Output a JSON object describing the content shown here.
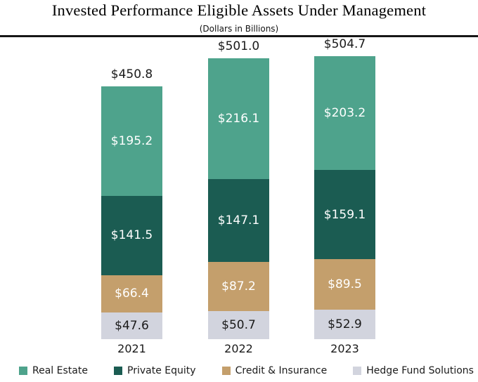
{
  "header": {
    "title": "Invested Performance Eligible Assets Under Management",
    "subtitle": "(Dollars in Billions)"
  },
  "chart_data": {
    "type": "bar",
    "variant": "stacked-vertical",
    "title": "Invested Performance Eligible Assets Under Management",
    "subtitle": "(Dollars in Billions)",
    "unit": "USD billions",
    "categories": [
      "2021",
      "2022",
      "2023"
    ],
    "totals": [
      450.8,
      501.0,
      504.7
    ],
    "total_labels": [
      "$450.8",
      "$501.0",
      "$504.7"
    ],
    "stack_order": "bottom-to-top",
    "series": [
      {
        "name": "Hedge Fund Solutions",
        "color": "#D2D4DE",
        "label_color": "#1A1A1A",
        "values": [
          47.6,
          50.7,
          52.9
        ],
        "value_labels": [
          "$47.6",
          "$50.7",
          "$52.9"
        ]
      },
      {
        "name": "Credit & Insurance",
        "color": "#C49F6C",
        "label_color": "#FFFFFF",
        "values": [
          66.4,
          87.2,
          89.5
        ],
        "value_labels": [
          "$66.4",
          "$87.2",
          "$89.5"
        ]
      },
      {
        "name": "Private Equity",
        "color": "#1B5C52",
        "label_color": "#FFFFFF",
        "values": [
          141.5,
          147.1,
          159.1
        ],
        "value_labels": [
          "$141.5",
          "$147.1",
          "$159.1"
        ]
      },
      {
        "name": "Real Estate",
        "color": "#4EA38C",
        "label_color": "#FFFFFF",
        "values": [
          195.2,
          216.1,
          203.2
        ],
        "value_labels": [
          "$195.2",
          "$216.1",
          "$203.2"
        ]
      }
    ],
    "legend": [
      {
        "label": "Real Estate",
        "color": "#4EA38C"
      },
      {
        "label": "Private Equity",
        "color": "#1B5C52"
      },
      {
        "label": "Credit & Insurance",
        "color": "#C49F6C"
      },
      {
        "label": "Hedge Fund Solutions",
        "color": "#D2D4DE"
      }
    ],
    "layout": {
      "legend_position": "bottom",
      "grid": false,
      "axes_visible": false,
      "value_labels_inside": true,
      "total_labels_above_bars": true
    }
  }
}
